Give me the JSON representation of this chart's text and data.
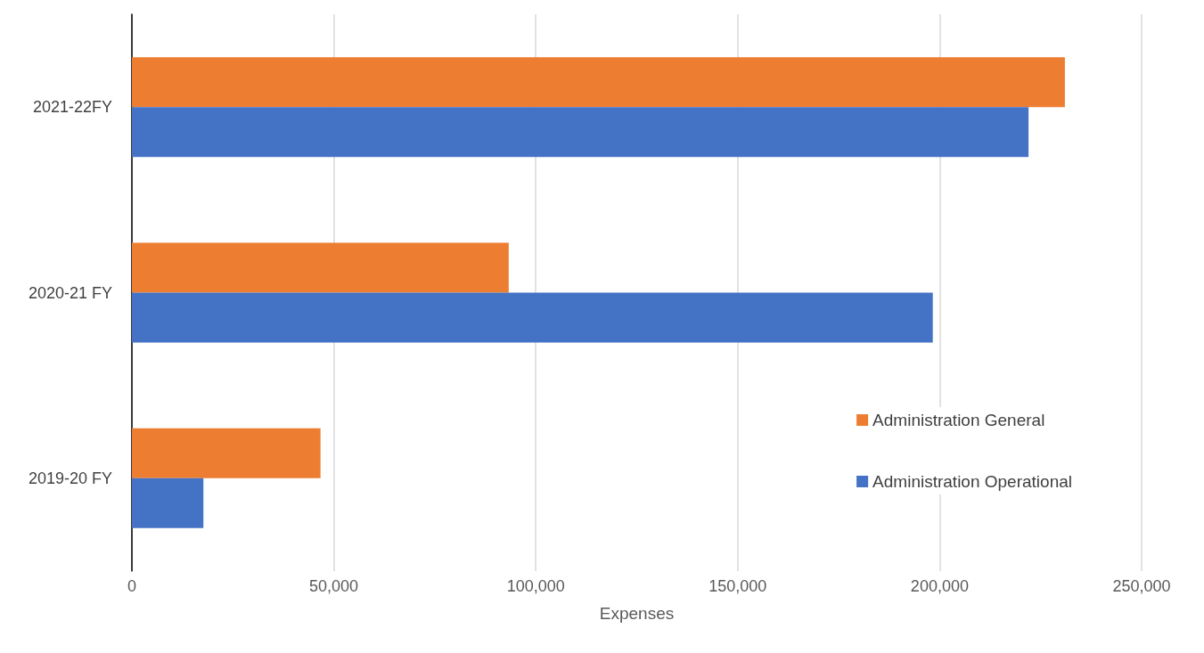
{
  "chart_data": {
    "type": "bar",
    "orientation": "horizontal",
    "xlabel": "Expenses",
    "categories": [
      "2021-22FY",
      "2020-21 FY",
      "2019-20 FY"
    ],
    "series": [
      {
        "name": "Administration General",
        "color": "#ed7d31",
        "values": [
          231000,
          93300,
          46700
        ]
      },
      {
        "name": "Administration Operational",
        "color": "#4472c4",
        "values": [
          222000,
          198300,
          17700
        ]
      }
    ],
    "xlim": [
      0,
      250000
    ],
    "xticks": [
      0,
      {
        "value": 50000,
        "label": "50,000"
      },
      {
        "value": 100000,
        "label": "100,000"
      },
      {
        "value": 150000,
        "label": "150,000"
      },
      {
        "value": 200000,
        "label": "200,000"
      },
      {
        "value": 250000,
        "label": "250,000"
      }
    ],
    "grid": "x",
    "legend": "bottom right"
  }
}
